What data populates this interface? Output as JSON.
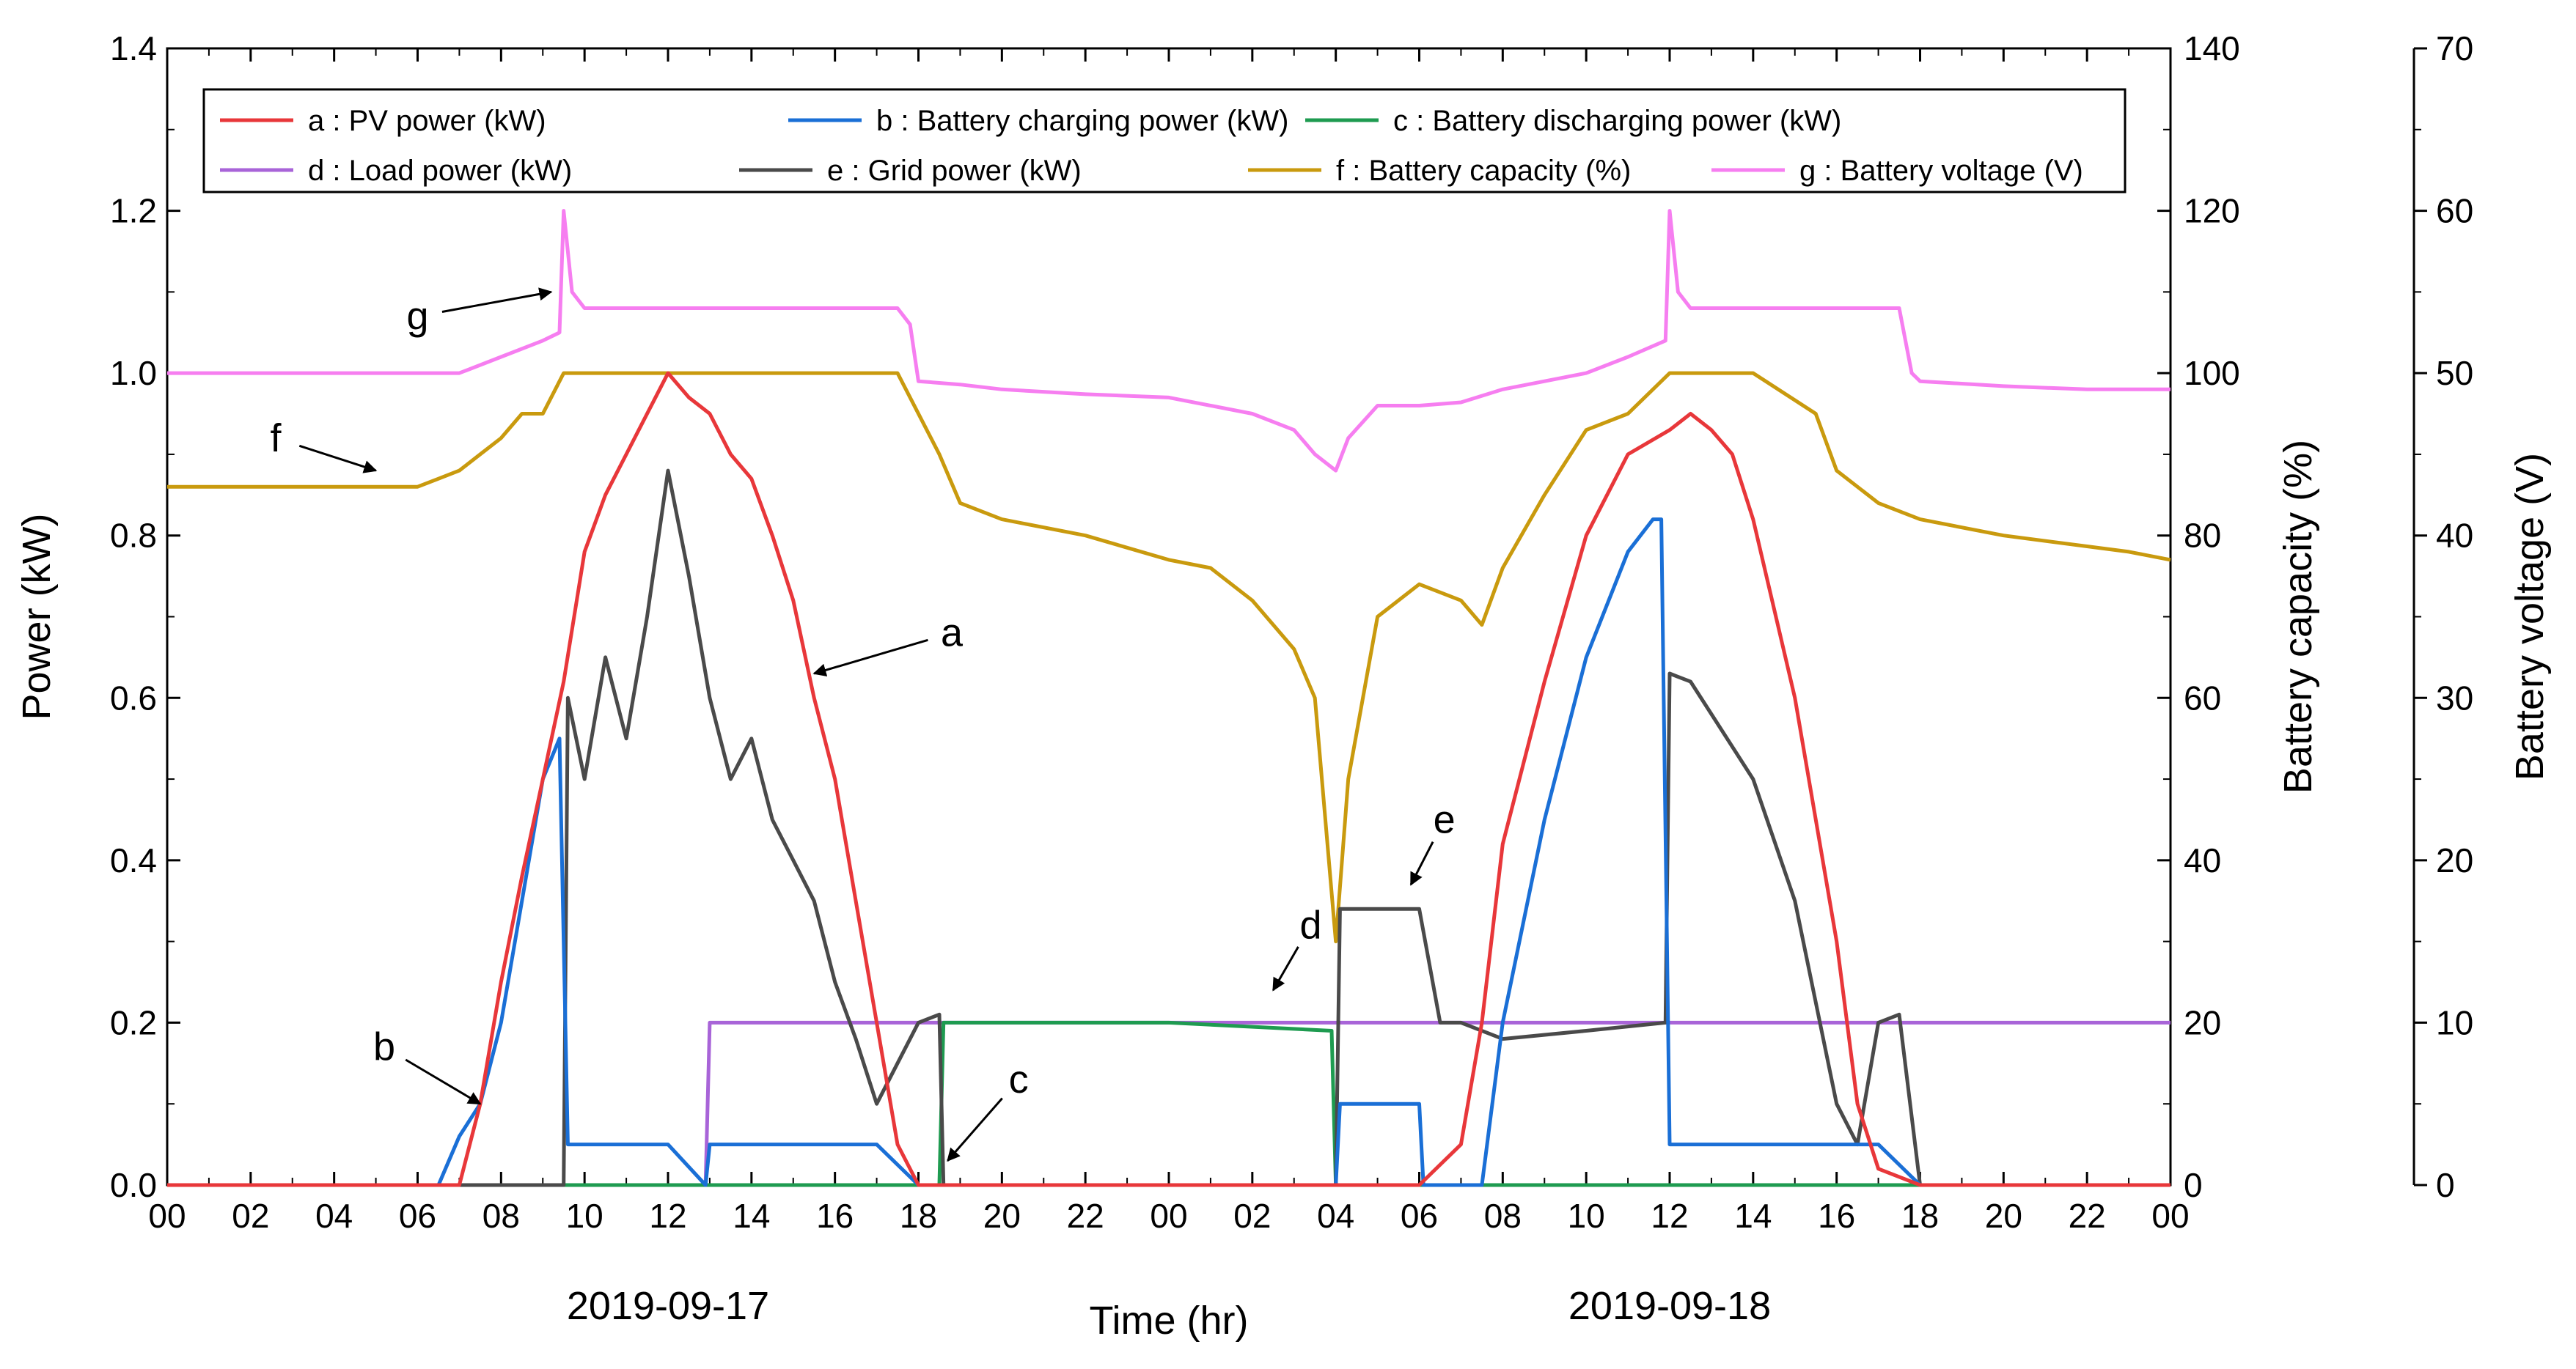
{
  "chart_data": {
    "type": "line",
    "title": "",
    "xlabel": "Time (hr)",
    "ylabel_left": "Power (kW)",
    "ylabel_right": "Battery capacity (%)",
    "ylabel_right2": "Battery voltage (V)",
    "ylim_left": [
      0,
      1.4
    ],
    "ylim_right": [
      0,
      140
    ],
    "ylim_right2": [
      0,
      70
    ],
    "xlim": [
      0,
      48
    ],
    "x_tick_labels": [
      "00",
      "02",
      "04",
      "06",
      "08",
      "10",
      "12",
      "14",
      "16",
      "18",
      "20",
      "22",
      "00",
      "02",
      "04",
      "06",
      "08",
      "10",
      "12",
      "14",
      "16",
      "18",
      "20",
      "22",
      "00"
    ],
    "y_ticks_left": [
      "0.0",
      "0.2",
      "0.4",
      "0.6",
      "0.8",
      "1.0",
      "1.2",
      "1.4"
    ],
    "y_ticks_right": [
      "0",
      "20",
      "40",
      "60",
      "80",
      "100",
      "120",
      "140"
    ],
    "y_ticks_right2": [
      "0",
      "10",
      "20",
      "30",
      "40",
      "50",
      "60",
      "70"
    ],
    "date_labels": [
      {
        "text": "2019-09-17",
        "x_hour": 12
      },
      {
        "text": "2019-09-18",
        "x_hour": 36
      }
    ],
    "legend_position": "top",
    "grid": false,
    "series": [
      {
        "key": "a",
        "name": "a : PV power (kW)",
        "color": "#e8373a",
        "axis": "left",
        "x": [
          0,
          7,
          7.5,
          8,
          8.5,
          9,
          9.5,
          10,
          10.5,
          11,
          11.5,
          12,
          12.5,
          13,
          13.5,
          14,
          14.5,
          15,
          15.5,
          16,
          16.5,
          17,
          17.5,
          18,
          24,
          30,
          31,
          31.5,
          32,
          33,
          34,
          35,
          36,
          36.5,
          37,
          37.5,
          38,
          39,
          40,
          40.5,
          41,
          42,
          48
        ],
        "y": [
          0,
          0,
          0.1,
          0.25,
          0.38,
          0.5,
          0.62,
          0.78,
          0.85,
          0.9,
          0.95,
          1.0,
          0.97,
          0.95,
          0.9,
          0.87,
          0.8,
          0.72,
          0.6,
          0.5,
          0.35,
          0.2,
          0.05,
          0,
          0,
          0,
          0.05,
          0.2,
          0.42,
          0.62,
          0.8,
          0.9,
          0.93,
          0.95,
          0.93,
          0.9,
          0.82,
          0.6,
          0.3,
          0.1,
          0.02,
          0,
          0
        ]
      },
      {
        "key": "b",
        "name": "b : Battery charging power (kW)",
        "color": "#1a6fd6",
        "axis": "left",
        "x": [
          0,
          6.5,
          7,
          7.5,
          8,
          8.5,
          9,
          9.4,
          9.6,
          12,
          12.9,
          13,
          15,
          16,
          17,
          18,
          24,
          28,
          28.1,
          30,
          30.1,
          31.5,
          32,
          33,
          34,
          35,
          35.6,
          35.8,
          36,
          37,
          38,
          40,
          41,
          42,
          48
        ],
        "y": [
          0,
          0,
          0.06,
          0.1,
          0.2,
          0.35,
          0.5,
          0.55,
          0.05,
          0.05,
          0.0,
          0.05,
          0.05,
          0.05,
          0.05,
          0,
          0,
          0,
          0.1,
          0.1,
          0,
          0,
          0.2,
          0.45,
          0.65,
          0.78,
          0.82,
          0.82,
          0.05,
          0.05,
          0.05,
          0.05,
          0.05,
          0,
          0
        ]
      },
      {
        "key": "c",
        "name": "c : Battery discharging power (kW)",
        "color": "#1e9b50",
        "axis": "left",
        "x": [
          0,
          18.5,
          18.6,
          24,
          27.9,
          28,
          48
        ],
        "y": [
          0,
          0,
          0.2,
          0.2,
          0.19,
          0,
          0
        ]
      },
      {
        "key": "d",
        "name": "d : Load power (kW)",
        "color": "#a864d8",
        "axis": "left",
        "x": [
          0,
          12.9,
          13,
          18,
          24,
          30,
          36,
          42,
          48
        ],
        "y": [
          0,
          0,
          0.2,
          0.2,
          0.2,
          0.2,
          0.2,
          0.2,
          0.2
        ]
      },
      {
        "key": "e",
        "name": "e : Grid power (kW)",
        "color": "#4a4a4a",
        "axis": "left",
        "x": [
          0,
          9.5,
          9.6,
          10,
          10.5,
          11,
          11.5,
          12,
          12.5,
          13,
          13.5,
          14,
          14.5,
          15,
          15.5,
          16,
          16.5,
          17,
          17.5,
          18,
          18.5,
          18.6,
          28,
          28.1,
          30,
          30.5,
          31,
          32,
          34,
          35.9,
          36,
          36.5,
          37,
          38,
          39,
          40,
          40.5,
          41,
          41.5,
          42,
          48
        ],
        "y": [
          0,
          0,
          0.6,
          0.5,
          0.65,
          0.55,
          0.7,
          0.88,
          0.75,
          0.6,
          0.5,
          0.55,
          0.45,
          0.4,
          0.35,
          0.25,
          0.18,
          0.1,
          0.15,
          0.2,
          0.21,
          0,
          0,
          0.34,
          0.34,
          0.2,
          0.2,
          0.18,
          0.19,
          0.2,
          0.63,
          0.62,
          0.58,
          0.5,
          0.35,
          0.1,
          0.05,
          0.2,
          0.21,
          0,
          0
        ]
      },
      {
        "key": "f",
        "name": "f : Battery capacity (%)",
        "color": "#c99a0e",
        "axis": "right",
        "x": [
          0,
          6,
          6.5,
          7,
          7.5,
          8,
          8.5,
          9,
          9.5,
          12,
          15,
          17.5,
          18,
          18.5,
          19,
          20,
          22,
          24,
          25,
          26,
          27,
          27.5,
          28,
          28.3,
          29,
          30,
          31,
          31.5,
          32,
          33,
          34,
          35,
          36,
          38,
          39.5,
          40,
          41,
          42,
          44,
          47,
          48
        ],
        "y": [
          86,
          86,
          87,
          88,
          90,
          92,
          95,
          95,
          100,
          100,
          100,
          100,
          95,
          90,
          84,
          82,
          80,
          77,
          76,
          72,
          66,
          60,
          30,
          50,
          70,
          74,
          72,
          69,
          76,
          85,
          93,
          95,
          100,
          100,
          95,
          88,
          84,
          82,
          80,
          78,
          77
        ]
      },
      {
        "key": "g",
        "name": "g : Battery voltage (V)",
        "color": "#f67ef0",
        "axis": "right2",
        "x": [
          0,
          5,
          6,
          7,
          8,
          9,
          9.4,
          9.5,
          9.7,
          10,
          12,
          15,
          17.5,
          17.8,
          18,
          19,
          20,
          22,
          24,
          26,
          27,
          27.5,
          28,
          28.3,
          29,
          30,
          31,
          32,
          34,
          35,
          35.9,
          36,
          36.2,
          36.5,
          38,
          41.5,
          41.8,
          42,
          44,
          46,
          48
        ],
        "y": [
          50,
          50,
          50,
          50,
          51,
          52,
          52.5,
          60,
          55,
          54,
          54,
          54,
          54,
          53,
          49.5,
          49.3,
          49,
          48.7,
          48.5,
          47.5,
          46.5,
          45,
          44,
          46,
          48,
          48,
          48.2,
          49,
          50,
          51,
          52,
          60,
          55,
          54,
          54,
          54,
          50,
          49.5,
          49.2,
          49,
          49
        ]
      }
    ],
    "annotations": [
      {
        "label": "a",
        "series": "a",
        "x": 15.5,
        "y": 0.63,
        "text_x": 18.8,
        "text_y": 0.68
      },
      {
        "label": "b",
        "series": "b",
        "x": 7.5,
        "y": 0.1,
        "text_x": 5.2,
        "text_y": 0.17
      },
      {
        "label": "c",
        "series": "c",
        "x": 18.7,
        "y": 0.03,
        "text_x": 20.4,
        "text_y": 0.13
      },
      {
        "label": "d",
        "series": "d",
        "x": 26.5,
        "y": 0.24,
        "text_x": 27.4,
        "text_y": 0.32
      },
      {
        "label": "e",
        "series": "e",
        "x": 29.8,
        "y": 0.37,
        "text_x": 30.6,
        "text_y": 0.45
      },
      {
        "label": "f",
        "series": "f",
        "x": 5.0,
        "y": 88,
        "text_x": 2.6,
        "text_y": 92
      },
      {
        "label": "g",
        "series": "g",
        "x": 9.2,
        "y": 55,
        "text_x": 6.0,
        "text_y": 53.5
      }
    ]
  }
}
